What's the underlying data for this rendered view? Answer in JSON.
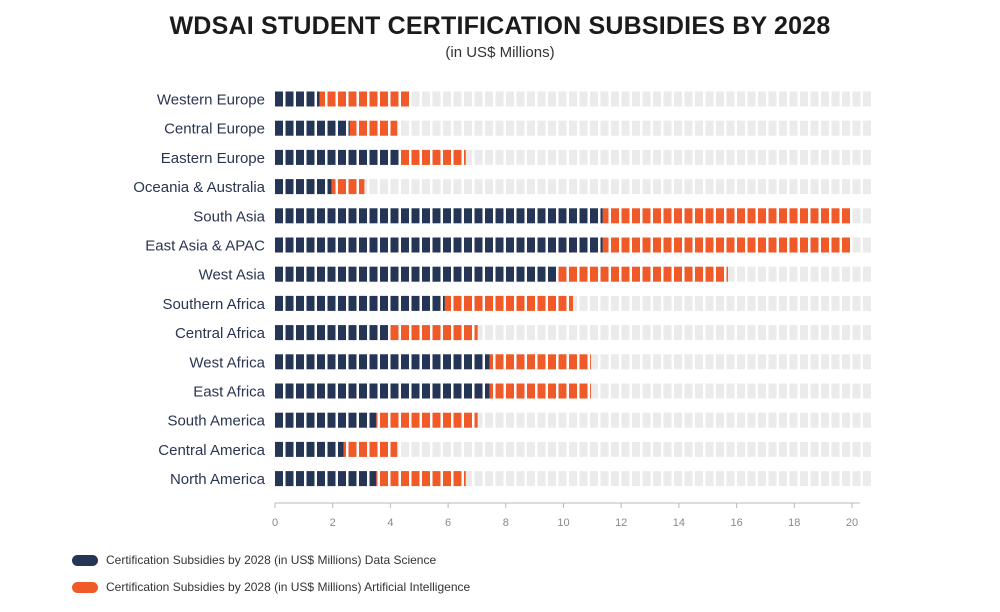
{
  "colors": {
    "data_science": "#253555",
    "ai": "#f05a28",
    "background_block": "#ebebeb",
    "axis": "#b8b8b8",
    "tick_label": "#8a8a8a",
    "category_label": "#2a3552"
  },
  "chart_data": {
    "type": "bar",
    "orientation": "horizontal",
    "stacked": true,
    "title": "WDSAI STUDENT CERTIFICATION SUBSIDIES BY 2028",
    "subtitle": "(in US$ Millions)",
    "xlim": [
      0,
      20
    ],
    "xticks": [
      "0",
      "2",
      "4",
      "6",
      "8",
      "10",
      "12",
      "14",
      "16",
      "18",
      "20"
    ],
    "categories": [
      "Western Europe",
      "Central Europe",
      "Eastern Europe",
      "Oceania & Australia",
      "South Asia",
      "East Asia & APAC",
      "West Asia",
      "Southern Africa",
      "Central Africa",
      "West Africa",
      "East Africa",
      "South America",
      "Central America",
      "North America"
    ],
    "series": [
      {
        "name": "Certification Subsidies by 2028 (in US$ Millions) Data Science",
        "color": "#253555",
        "values": [
          1.5,
          2.5,
          4.2,
          1.9,
          11.0,
          11.0,
          9.5,
          5.7,
          3.8,
          7.2,
          7.2,
          3.4,
          2.3,
          3.4
        ]
      },
      {
        "name": "Certification Subsidies by 2028 (in US$ Millions) Artificial Intelligence",
        "color": "#f05a28",
        "values": [
          3.0,
          1.6,
          2.2,
          1.1,
          8.3,
          8.3,
          5.7,
          4.3,
          3.0,
          3.4,
          3.4,
          3.4,
          1.8,
          3.0
        ]
      }
    ],
    "legend_position": "bottom-left"
  }
}
